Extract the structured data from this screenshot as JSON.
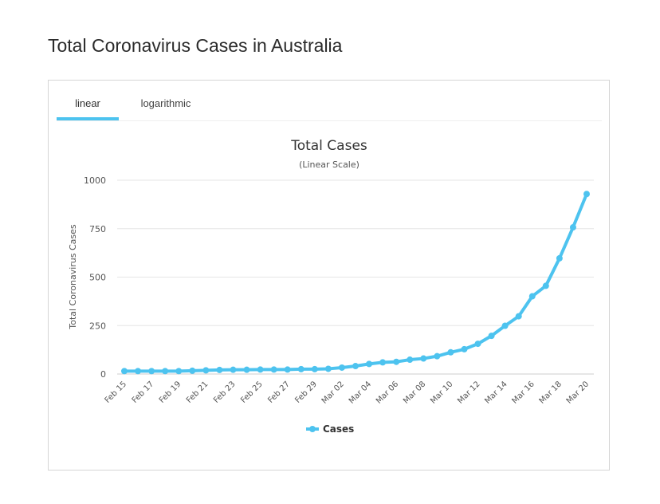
{
  "page": {
    "title": "Total Coronavirus Cases in Australia"
  },
  "tabs": [
    {
      "label": "linear",
      "active": true
    },
    {
      "label": "logarithmic",
      "active": false
    }
  ],
  "colors": {
    "series": "#4dc3ef",
    "grid": "#e6e6e6",
    "text": "#333333"
  },
  "chart_data": {
    "type": "line",
    "title": "Total Cases",
    "subtitle": "(Linear Scale)",
    "ylabel": "Total Coronavirus Cases",
    "xlabel": "",
    "ylim": [
      0,
      1000
    ],
    "yticks": [
      0,
      250,
      500,
      750,
      1000
    ],
    "grid": true,
    "legend_position": "bottom-center",
    "x": [
      "Feb 15",
      "Feb 16",
      "Feb 17",
      "Feb 18",
      "Feb 19",
      "Feb 20",
      "Feb 21",
      "Feb 22",
      "Feb 23",
      "Feb 24",
      "Feb 25",
      "Feb 26",
      "Feb 27",
      "Feb 28",
      "Feb 29",
      "Mar 01",
      "Mar 02",
      "Mar 03",
      "Mar 04",
      "Mar 05",
      "Mar 06",
      "Mar 07",
      "Mar 08",
      "Mar 09",
      "Mar 10",
      "Mar 11",
      "Mar 12",
      "Mar 13",
      "Mar 14",
      "Mar 15",
      "Mar 16",
      "Mar 17",
      "Mar 18",
      "Mar 19",
      "Mar 20"
    ],
    "x_tick_labels": [
      "Feb 15",
      "Feb 17",
      "Feb 19",
      "Feb 21",
      "Feb 23",
      "Feb 25",
      "Feb 27",
      "Feb 29",
      "Mar 02",
      "Mar 04",
      "Mar 06",
      "Mar 08",
      "Mar 10",
      "Mar 12",
      "Mar 14",
      "Mar 16",
      "Mar 18",
      "Mar 20"
    ],
    "series": [
      {
        "name": "Cases",
        "values": [
          15,
          15,
          15,
          15,
          15,
          17,
          19,
          21,
          22,
          22,
          23,
          23,
          23,
          25,
          25,
          27,
          33,
          41,
          52,
          60,
          63,
          74,
          80,
          92,
          112,
          128,
          156,
          197,
          249,
          298,
          401,
          455,
          597,
          757,
          929
        ]
      }
    ]
  }
}
